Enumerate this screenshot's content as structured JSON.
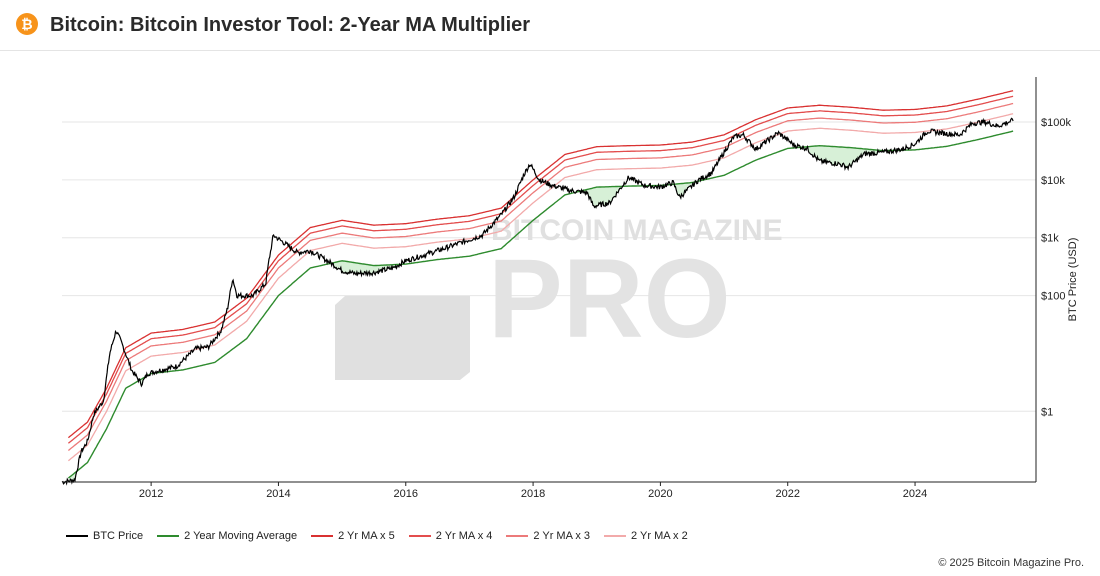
{
  "header": {
    "title": "Bitcoin: Bitcoin Investor Tool: 2-Year MA Multiplier",
    "logo_glyph": "₿"
  },
  "watermark": {
    "line1": "BITCOIN MAGAZINE",
    "line2": "PRO"
  },
  "copyright": "© 2025 Bitcoin Magazine Pro.",
  "colors": {
    "btc": "#000000",
    "ma": "#2e8b2e",
    "x5": "#d93131",
    "x4": "#e34d4d",
    "x3": "#ec7a7a",
    "x2": "#f2aaaa",
    "fill": "#cdeccd",
    "accent": "#f7931a"
  },
  "chart_data": {
    "type": "line",
    "title": "",
    "xlabel": "",
    "ylabel": "BTC Price (USD)",
    "yscale": "log",
    "xlim": [
      2010.6,
      2025.9
    ],
    "ylim": [
      0.06,
      600000
    ],
    "x_ticks": [
      "2012",
      "2014",
      "2016",
      "2018",
      "2020",
      "2022",
      "2024"
    ],
    "y_ticks": [
      {
        "value": 1,
        "label": "$1"
      },
      {
        "value": 100,
        "label": "$100"
      },
      {
        "value": 1000,
        "label": "$1k"
      },
      {
        "value": 10000,
        "label": "$10k"
      },
      {
        "value": 100000,
        "label": "$100k"
      }
    ],
    "grid": "horizontal",
    "legend_position": "bottom",
    "series": [
      {
        "name": "BTC Price",
        "key": "btc",
        "x": [
          2010.6,
          2010.8,
          2010.9,
          2011.0,
          2011.1,
          2011.25,
          2011.35,
          2011.45,
          2011.55,
          2011.7,
          2011.85,
          2011.95,
          2012.1,
          2012.4,
          2012.7,
          2012.9,
          2013.1,
          2013.2,
          2013.28,
          2013.35,
          2013.6,
          2013.8,
          2013.85,
          2013.92,
          2014.1,
          2014.3,
          2014.5,
          2014.8,
          2015.0,
          2015.2,
          2015.5,
          2015.8,
          2016.0,
          2016.4,
          2016.6,
          2016.9,
          2017.2,
          2017.5,
          2017.7,
          2017.85,
          2017.95,
          2018.1,
          2018.3,
          2018.6,
          2018.85,
          2018.95,
          2019.2,
          2019.5,
          2019.75,
          2020.0,
          2020.2,
          2020.3,
          2020.6,
          2020.8,
          2021.0,
          2021.15,
          2021.3,
          2021.5,
          2021.65,
          2021.85,
          2022.1,
          2022.3,
          2022.5,
          2022.8,
          2022.95,
          2023.2,
          2023.5,
          2023.8,
          2024.0,
          2024.2,
          2024.5,
          2024.7,
          2024.9,
          2025.1,
          2025.3,
          2025.55
        ],
        "y": [
          0.06,
          0.065,
          0.2,
          0.3,
          0.9,
          1.5,
          10,
          25,
          14,
          5,
          3,
          4.5,
          5,
          6,
          12,
          13,
          25,
          60,
          200,
          100,
          100,
          160,
          400,
          1100,
          800,
          550,
          600,
          380,
          270,
          240,
          250,
          300,
          400,
          550,
          650,
          850,
          1100,
          2500,
          5000,
          12000,
          19000,
          10000,
          8000,
          6500,
          6000,
          3500,
          4000,
          11000,
          8000,
          7500,
          9000,
          5000,
          10000,
          13000,
          30000,
          55000,
          60000,
          34000,
          45000,
          65000,
          40000,
          35000,
          21000,
          19000,
          16500,
          28000,
          30000,
          34000,
          42000,
          70000,
          63000,
          60000,
          95000,
          100000,
          85000,
          108000
        ]
      },
      {
        "name": "2 Year Moving Average",
        "key": "ma",
        "x": [
          2010.7,
          2011.0,
          2011.3,
          2011.6,
          2012.0,
          2012.5,
          2013.0,
          2013.5,
          2014.0,
          2014.5,
          2015.0,
          2015.5,
          2016.0,
          2016.5,
          2017.0,
          2017.5,
          2018.0,
          2018.5,
          2019.0,
          2019.5,
          2020.0,
          2020.5,
          2021.0,
          2021.5,
          2022.0,
          2022.5,
          2023.0,
          2023.5,
          2024.0,
          2024.5,
          2025.0,
          2025.55
        ],
        "y": [
          0.07,
          0.13,
          0.5,
          2.5,
          4.5,
          5.2,
          7,
          18,
          100,
          300,
          400,
          330,
          350,
          420,
          480,
          650,
          2000,
          5500,
          7500,
          7800,
          8000,
          9000,
          12000,
          22000,
          35000,
          39000,
          36000,
          32000,
          33000,
          38000,
          50000,
          70000
        ]
      }
    ],
    "multipliers": [
      {
        "name": "2 Yr MA x 5",
        "key": "x5",
        "factor": 5
      },
      {
        "name": "2 Yr MA x 4",
        "key": "x4",
        "factor": 4
      },
      {
        "name": "2 Yr MA x 3",
        "key": "x3",
        "factor": 3
      },
      {
        "name": "2 Yr MA x 2",
        "key": "x2",
        "factor": 2
      }
    ]
  }
}
